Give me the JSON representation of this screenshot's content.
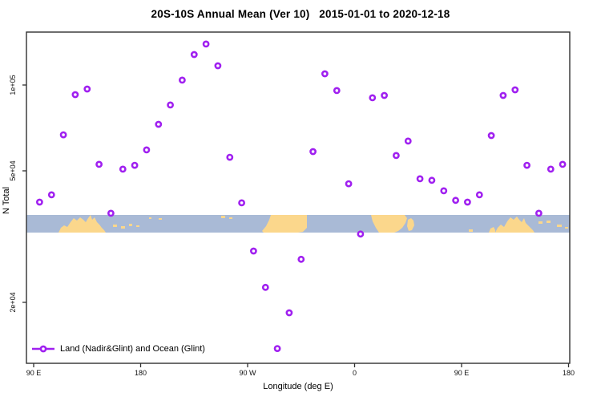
{
  "title": "20S-10S Annual Mean (Ver 10)   2015-01-01 to 2020-12-18",
  "chart_data": {
    "type": "scatter",
    "title": "20S-10S Annual Mean (Ver 10)   2015-01-01 to 2020-12-18",
    "xlabel": "Longitude (deg E)",
    "ylabel": "N Total",
    "y_scale": "log",
    "x_axis_note": "longitude unwrapped eastward: 90E to 180, 90W, 0, 90E, 180",
    "x_ticks": [
      {
        "deg": 90,
        "label": "90 E"
      },
      {
        "deg": 180,
        "label": "180"
      },
      {
        "deg": 270,
        "label": "90 W"
      },
      {
        "deg": 360,
        "label": "0"
      },
      {
        "deg": 450,
        "label": "90 E"
      },
      {
        "deg": 540,
        "label": "180"
      }
    ],
    "y_ticks": [
      {
        "value": 100000,
        "label": "1e+05"
      },
      {
        "value": 50000,
        "label": "5e+04"
      },
      {
        "value": 20000,
        "label": "2e+04"
      }
    ],
    "legend": {
      "label": "Land (Nadir&Glint) and Ocean (Glint)",
      "position": "bottom-left"
    },
    "marker": {
      "shape": "open-circle",
      "color": "#A020F0"
    },
    "map_band": {
      "ocean_color": "#A9BAD6",
      "land_color": "#FBD78C"
    },
    "axis_color": "#303030",
    "series": [
      {
        "name": "Land (Nadir&Glint) and Ocean (Glint)",
        "points": [
          {
            "lon": 95,
            "n": 40200
          },
          {
            "lon": 105,
            "n": 42300
          },
          {
            "lon": 115,
            "n": 66900
          },
          {
            "lon": 125,
            "n": 92500
          },
          {
            "lon": 135,
            "n": 96800
          },
          {
            "lon": 145,
            "n": 52700
          },
          {
            "lon": 155,
            "n": 37200
          },
          {
            "lon": 165,
            "n": 50700
          },
          {
            "lon": 175,
            "n": 52300
          },
          {
            "lon": 185,
            "n": 59200
          },
          {
            "lon": 195,
            "n": 72800
          },
          {
            "lon": 205,
            "n": 85100
          },
          {
            "lon": 215,
            "n": 104000
          },
          {
            "lon": 225,
            "n": 127900
          },
          {
            "lon": 235,
            "n": 139200
          },
          {
            "lon": 245,
            "n": 116800
          },
          {
            "lon": 255,
            "n": 55800
          },
          {
            "lon": 265,
            "n": 40000
          },
          {
            "lon": 275,
            "n": 28600
          },
          {
            "lon": 285,
            "n": 22200
          },
          {
            "lon": 295,
            "n": 14500
          },
          {
            "lon": 305,
            "n": 18600
          },
          {
            "lon": 315,
            "n": 27000
          },
          {
            "lon": 325,
            "n": 58400
          },
          {
            "lon": 335,
            "n": 109500
          },
          {
            "lon": 345,
            "n": 95600
          },
          {
            "lon": 355,
            "n": 45700
          },
          {
            "lon": 365,
            "n": 32200
          },
          {
            "lon": 375,
            "n": 90200
          },
          {
            "lon": 385,
            "n": 91900
          },
          {
            "lon": 395,
            "n": 56600
          },
          {
            "lon": 405,
            "n": 63600
          },
          {
            "lon": 415,
            "n": 47300
          },
          {
            "lon": 425,
            "n": 46800
          },
          {
            "lon": 435,
            "n": 43500
          },
          {
            "lon": 445,
            "n": 40700
          },
          {
            "lon": 455,
            "n": 40200
          },
          {
            "lon": 465,
            "n": 42300
          },
          {
            "lon": 475,
            "n": 66500
          },
          {
            "lon": 485,
            "n": 91900
          },
          {
            "lon": 495,
            "n": 96200
          },
          {
            "lon": 505,
            "n": 52300
          },
          {
            "lon": 515,
            "n": 37200
          },
          {
            "lon": 525,
            "n": 50700
          },
          {
            "lon": 535,
            "n": 52700
          }
        ]
      }
    ]
  }
}
